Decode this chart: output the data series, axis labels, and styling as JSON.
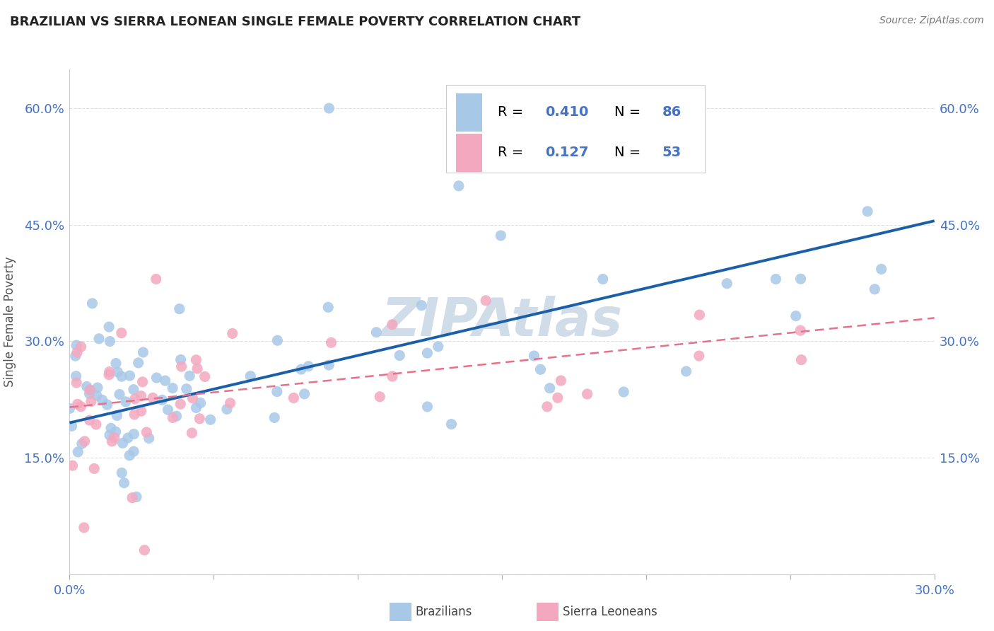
{
  "title": "BRAZILIAN VS SIERRA LEONEAN SINGLE FEMALE POVERTY CORRELATION CHART",
  "source": "Source: ZipAtlas.com",
  "ylabel": "Single Female Poverty",
  "xlim": [
    0.0,
    0.3
  ],
  "ylim": [
    0.0,
    0.65
  ],
  "xtick_positions": [
    0.0,
    0.05,
    0.1,
    0.15,
    0.2,
    0.25,
    0.3
  ],
  "xtick_labels": [
    "0.0%",
    "",
    "",
    "",
    "",
    "",
    "30.0%"
  ],
  "ytick_positions": [
    0.0,
    0.15,
    0.3,
    0.45,
    0.6
  ],
  "ytick_labels": [
    "",
    "15.0%",
    "30.0%",
    "45.0%",
    "60.0%"
  ],
  "blue_color": "#a8c8e8",
  "pink_color": "#f4a8c0",
  "blue_line_color": "#1a5fa8",
  "pink_line_color": "#e8708a",
  "axis_label_color": "#4472c4",
  "grid_color": "#e0e0e0",
  "title_color": "#222222",
  "watermark_color": "#d0dce8",
  "legend_val_color": "#4472c4",
  "brazil_trend_x0": 0.0,
  "brazil_trend_y0": 0.195,
  "brazil_trend_x1": 0.3,
  "brazil_trend_y1": 0.455,
  "sierra_trend_x0": 0.0,
  "sierra_trend_y0": 0.215,
  "sierra_trend_x1": 0.3,
  "sierra_trend_y1": 0.33
}
